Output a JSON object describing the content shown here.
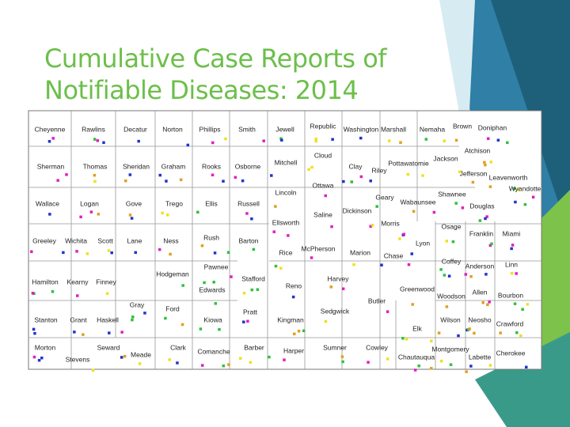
{
  "title": "Cumulative Case Reports of Notifiable Diseases: 2014",
  "counties": [
    "Cheyenne",
    "Rawlins",
    "Decatur",
    "Norton",
    "Phillips",
    "Smith",
    "Jewell",
    "Republic",
    "Washington",
    "Marshall",
    "Nemaha",
    "Brown",
    "Doniphan",
    "Sherman",
    "Thomas",
    "Sheridan",
    "Graham",
    "Rooks",
    "Osborne",
    "Mitchell",
    "Cloud",
    "Clay",
    "Riley",
    "Pottawatomie",
    "Jackson",
    "Atchison",
    "Jefferson",
    "Leavenworth",
    "Wyandotte",
    "Wallace",
    "Logan",
    "Gove",
    "Trego",
    "Ellis",
    "Russell",
    "Lincoln",
    "Ottawa",
    "Saline",
    "Dickinson",
    "Geary",
    "Wabaunsee",
    "Shawnee",
    "Douglas",
    "Ellsworth",
    "Morris",
    "Greeley",
    "Wichita",
    "Scott",
    "Lane",
    "Ness",
    "Rush",
    "Barton",
    "Rice",
    "McPherson",
    "Marion",
    "Chase",
    "Lyon",
    "Osage",
    "Franklin",
    "Miami",
    "Hamilton",
    "Kearny",
    "Finney",
    "Hodgeman",
    "Pawnee",
    "Stafford",
    "Reno",
    "Harvey",
    "Coffey",
    "Anderson",
    "Linn",
    "Edwards",
    "Gray",
    "Ford",
    "Butler",
    "Greenwood",
    "Woodson",
    "Allen",
    "Bourbon",
    "Pratt",
    "Sedgwick",
    "Stanton",
    "Grant",
    "Haskell",
    "Kiowa",
    "Kingman",
    "Wilson",
    "Neosho",
    "Crawford",
    "Elk",
    "Morton",
    "Stevens",
    "Seward",
    "Meade",
    "Clark",
    "Comanche",
    "Barber",
    "Harper",
    "Sumner",
    "Cowley",
    "Chautauqua",
    "Montgomery",
    "Labette",
    "Cherokee"
  ]
}
